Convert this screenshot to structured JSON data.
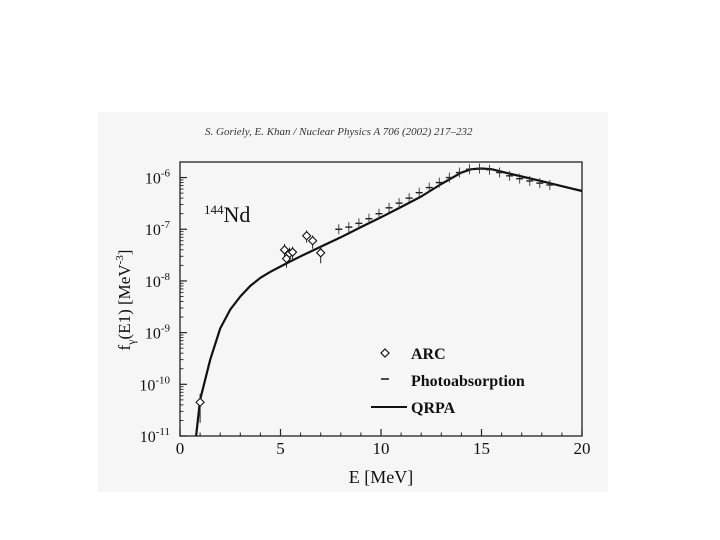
{
  "citation": "S. Goriely, E. Khan / Nuclear Physics A 706 (2002) 217–232",
  "chart_data": {
    "type": "scatter",
    "annotation": {
      "base": "Nd",
      "sup": "144"
    },
    "xlabel": "E [MeV]",
    "ylabel": {
      "f": "f",
      "sub": "γ",
      "rest": "(E1) [MeV",
      "sup": "-3",
      "close": "]"
    },
    "xlim": [
      0,
      20
    ],
    "ylim": [
      1e-11,
      2e-06
    ],
    "yscale": "log",
    "xticks": [
      0,
      5,
      10,
      15,
      20
    ],
    "yticks": [
      {
        "value": 1e-06,
        "base": "10",
        "exp": "-6"
      },
      {
        "value": 1e-07,
        "base": "10",
        "exp": "-7"
      },
      {
        "value": 1e-08,
        "base": "10",
        "exp": "-8"
      },
      {
        "value": 1e-09,
        "base": "10",
        "exp": "-9"
      },
      {
        "value": 1e-10,
        "base": "10",
        "exp": "-10"
      },
      {
        "value": 1e-11,
        "base": "10",
        "exp": "-11"
      }
    ],
    "legend_position": "bottom-right",
    "series": [
      {
        "name": "ARC",
        "kind": "diamond-markers",
        "points": [
          {
            "x": 1.0,
            "y": 4.5e-11,
            "lo": 1.8e-11,
            "hi": 6.5e-11
          },
          {
            "x": 5.2,
            "y": 4e-08,
            "lo": 2.6e-08,
            "hi": 5.2e-08
          },
          {
            "x": 5.3,
            "y": 2.7e-08,
            "lo": 1.8e-08,
            "hi": 3.6e-08
          },
          {
            "x": 5.45,
            "y": 3.4e-08,
            "lo": 2.4e-08,
            "hi": 4.4e-08
          },
          {
            "x": 5.6,
            "y": 3.6e-08,
            "lo": 2.5e-08,
            "hi": 4.6e-08
          },
          {
            "x": 6.3,
            "y": 7.5e-08,
            "lo": 5.5e-08,
            "hi": 9.5e-08
          },
          {
            "x": 6.6,
            "y": 6e-08,
            "lo": 4.2e-08,
            "hi": 7.6e-08
          },
          {
            "x": 7.0,
            "y": 3.5e-08,
            "lo": 2.2e-08,
            "hi": 4.8e-08
          }
        ]
      },
      {
        "name": "Photoabsorption",
        "kind": "dash-markers",
        "points": [
          {
            "x": 7.9,
            "y": 1e-07
          },
          {
            "x": 8.4,
            "y": 1.1e-07
          },
          {
            "x": 8.9,
            "y": 1.3e-07
          },
          {
            "x": 9.4,
            "y": 1.6e-07
          },
          {
            "x": 9.9,
            "y": 2e-07
          },
          {
            "x": 10.4,
            "y": 2.6e-07
          },
          {
            "x": 10.9,
            "y": 3.2e-07
          },
          {
            "x": 11.4,
            "y": 4e-07
          },
          {
            "x": 11.9,
            "y": 5.1e-07
          },
          {
            "x": 12.4,
            "y": 6.4e-07
          },
          {
            "x": 12.9,
            "y": 8e-07
          },
          {
            "x": 13.4,
            "y": 1e-06
          },
          {
            "x": 13.9,
            "y": 1.25e-06
          },
          {
            "x": 14.4,
            "y": 1.45e-06
          },
          {
            "x": 14.9,
            "y": 1.5e-06
          },
          {
            "x": 15.4,
            "y": 1.42e-06
          },
          {
            "x": 15.9,
            "y": 1.25e-06
          },
          {
            "x": 16.4,
            "y": 1.08e-06
          },
          {
            "x": 16.9,
            "y": 9.5e-07
          },
          {
            "x": 17.4,
            "y": 8.6e-07
          },
          {
            "x": 17.9,
            "y": 7.8e-07
          },
          {
            "x": 18.4,
            "y": 7.2e-07
          }
        ]
      },
      {
        "name": "QRPA",
        "kind": "line",
        "points": [
          {
            "x": 0.8,
            "y": 1e-11
          },
          {
            "x": 1.0,
            "y": 5e-11
          },
          {
            "x": 1.5,
            "y": 3e-10
          },
          {
            "x": 2.0,
            "y": 1.2e-09
          },
          {
            "x": 2.5,
            "y": 2.8e-09
          },
          {
            "x": 3.0,
            "y": 5e-09
          },
          {
            "x": 3.5,
            "y": 8e-09
          },
          {
            "x": 4.0,
            "y": 1.15e-08
          },
          {
            "x": 4.5,
            "y": 1.5e-08
          },
          {
            "x": 5.0,
            "y": 1.9e-08
          },
          {
            "x": 5.5,
            "y": 2.4e-08
          },
          {
            "x": 6.0,
            "y": 3e-08
          },
          {
            "x": 7.0,
            "y": 4.6e-08
          },
          {
            "x": 8.0,
            "y": 7e-08
          },
          {
            "x": 9.0,
            "y": 1.1e-07
          },
          {
            "x": 10.0,
            "y": 1.7e-07
          },
          {
            "x": 11.0,
            "y": 2.7e-07
          },
          {
            "x": 12.0,
            "y": 4.3e-07
          },
          {
            "x": 13.0,
            "y": 7.5e-07
          },
          {
            "x": 14.0,
            "y": 1.25e-06
          },
          {
            "x": 14.5,
            "y": 1.45e-06
          },
          {
            "x": 15.0,
            "y": 1.5e-06
          },
          {
            "x": 15.5,
            "y": 1.45e-06
          },
          {
            "x": 16.0,
            "y": 1.3e-06
          },
          {
            "x": 17.0,
            "y": 1.05e-06
          },
          {
            "x": 18.0,
            "y": 8.5e-07
          },
          {
            "x": 19.0,
            "y": 6.8e-07
          },
          {
            "x": 20.0,
            "y": 5.5e-07
          }
        ]
      }
    ]
  }
}
